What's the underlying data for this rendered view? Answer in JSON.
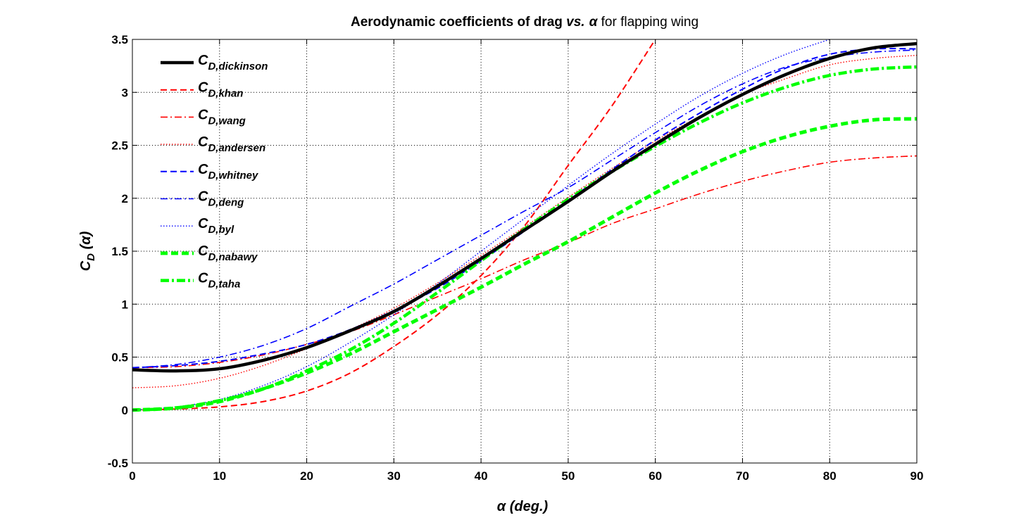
{
  "chart_data": {
    "type": "line",
    "title": {
      "part1": "Aerodynamic coefficients of drag ",
      "vs": "vs.",
      "alpha": "α",
      "part2": " for flapping wing"
    },
    "xlabel": {
      "symbol": "α",
      "text": " (deg.)"
    },
    "ylabel": {
      "main": "C",
      "sub": "D",
      "arg": " (α)"
    },
    "xlim": [
      0,
      90
    ],
    "ylim": [
      -0.5,
      3.5
    ],
    "xticks": [
      0,
      10,
      20,
      30,
      40,
      50,
      60,
      70,
      80,
      90
    ],
    "xtick_labels": [
      "0",
      "10",
      "20",
      "30",
      "40",
      "50",
      "60",
      "70",
      "80",
      "90"
    ],
    "yticks": [
      -0.5,
      0,
      0.5,
      1,
      1.5,
      2,
      2.5,
      3,
      3.5
    ],
    "ytick_labels": [
      "-0.5",
      "0",
      "0.5",
      "1",
      "1.5",
      "2",
      "2.5",
      "3",
      "3.5"
    ],
    "grid": true,
    "legend_position": "top-left",
    "x": [
      0,
      5,
      10,
      15,
      20,
      25,
      30,
      35,
      40,
      45,
      50,
      55,
      60,
      65,
      70,
      75,
      80,
      85,
      90
    ],
    "series": [
      {
        "main": "C",
        "sub": "D,dickinson",
        "color": "#000000",
        "style": "solid-thick",
        "values": [
          0.38,
          0.37,
          0.39,
          0.47,
          0.59,
          0.75,
          0.93,
          1.17,
          1.43,
          1.7,
          1.97,
          2.25,
          2.51,
          2.76,
          2.98,
          3.17,
          3.32,
          3.42,
          3.46
        ]
      },
      {
        "main": "C",
        "sub": "D,khan",
        "color": "#ff0000",
        "style": "dashed",
        "values": [
          0.0,
          0.01,
          0.03,
          0.08,
          0.18,
          0.35,
          0.6,
          0.9,
          1.27,
          1.74,
          2.31,
          2.87,
          3.5,
          null,
          null,
          null,
          null,
          null,
          null
        ]
      },
      {
        "main": "C",
        "sub": "D,wang",
        "color": "#ff0000",
        "style": "dashdot",
        "values": [
          0.4,
          0.41,
          0.45,
          0.52,
          0.62,
          0.74,
          0.9,
          1.07,
          1.24,
          1.42,
          1.58,
          1.76,
          1.9,
          2.04,
          2.16,
          2.26,
          2.34,
          2.38,
          2.4
        ]
      },
      {
        "main": "C",
        "sub": "D,andersen",
        "color": "#ff0000",
        "style": "dotted",
        "values": [
          0.21,
          0.23,
          0.3,
          0.42,
          0.58,
          0.76,
          0.96,
          1.2,
          1.46,
          1.73,
          2.01,
          2.28,
          2.54,
          2.77,
          2.98,
          3.13,
          3.26,
          3.32,
          3.35
        ]
      },
      {
        "main": "C",
        "sub": "D,whitney",
        "color": "#0000ff",
        "style": "dashed",
        "values": [
          0.4,
          0.42,
          0.46,
          0.53,
          0.62,
          0.76,
          0.94,
          1.15,
          1.41,
          1.69,
          1.98,
          2.27,
          2.55,
          2.8,
          3.03,
          3.23,
          3.36,
          3.41,
          3.41
        ]
      },
      {
        "main": "C",
        "sub": "D,deng",
        "color": "#0000ff",
        "style": "dashdot",
        "values": [
          0.4,
          0.43,
          0.5,
          0.61,
          0.77,
          0.98,
          1.19,
          1.42,
          1.65,
          1.88,
          2.1,
          2.36,
          2.62,
          2.87,
          3.08,
          3.24,
          3.33,
          3.38,
          3.4
        ]
      },
      {
        "main": "C",
        "sub": "D,byl",
        "color": "#0000ff",
        "style": "dotted",
        "values": [
          0.0,
          0.03,
          0.1,
          0.23,
          0.41,
          0.64,
          0.9,
          1.19,
          1.5,
          1.81,
          2.12,
          2.42,
          2.7,
          2.96,
          3.18,
          3.36,
          3.5,
          null,
          null
        ]
      },
      {
        "main": "C",
        "sub": "D,nabawy",
        "color": "#00ff00",
        "style": "dashed-thick",
        "values": [
          0.0,
          0.02,
          0.08,
          0.2,
          0.35,
          0.53,
          0.74,
          0.95,
          1.16,
          1.38,
          1.59,
          1.82,
          2.05,
          2.26,
          2.44,
          2.58,
          2.68,
          2.74,
          2.75
        ]
      },
      {
        "main": "C",
        "sub": "D,taha",
        "color": "#00ff00",
        "style": "dashdot-thick",
        "values": [
          0.0,
          0.02,
          0.09,
          0.2,
          0.37,
          0.57,
          0.82,
          1.11,
          1.41,
          1.71,
          1.99,
          2.25,
          2.49,
          2.71,
          2.9,
          3.05,
          3.16,
          3.22,
          3.24
        ]
      }
    ]
  }
}
